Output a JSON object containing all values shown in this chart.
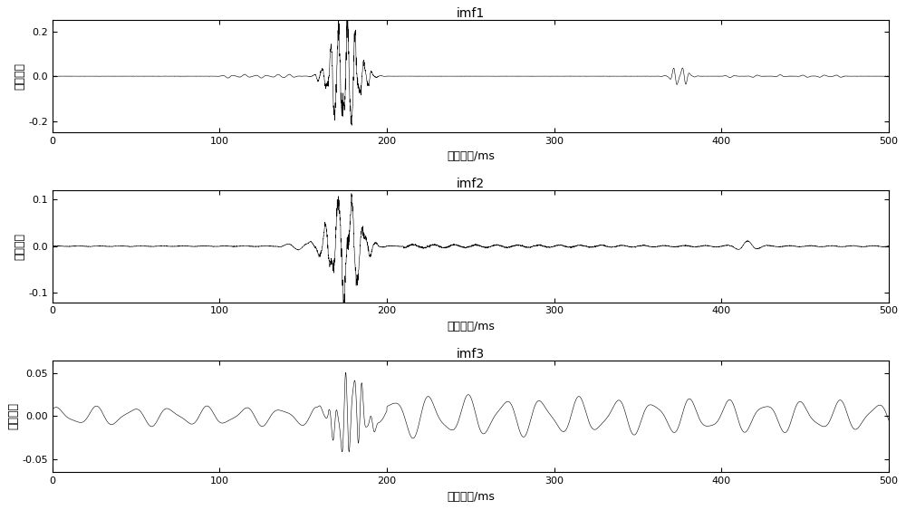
{
  "title1": "imf1",
  "title2": "imf2",
  "title3": "imf3",
  "xlabel": "采样时间/ms",
  "ylabel": "信号幅値",
  "xlim": [
    0,
    500
  ],
  "ylim1": [
    -0.25,
    0.25
  ],
  "ylim2": [
    -0.12,
    0.12
  ],
  "ylim3": [
    -0.065,
    0.065
  ],
  "yticks1": [
    -0.2,
    0,
    0.2
  ],
  "yticks2": [
    -0.1,
    0,
    0.1
  ],
  "yticks3": [
    -0.05,
    0,
    0.05
  ],
  "xticks": [
    0,
    100,
    200,
    300,
    400,
    500
  ],
  "n_samples": 5000,
  "line_color": "#000000",
  "line_width": 0.4,
  "bg_color": "#ffffff",
  "title_fontsize": 10,
  "label_fontsize": 9,
  "tick_fontsize": 8
}
